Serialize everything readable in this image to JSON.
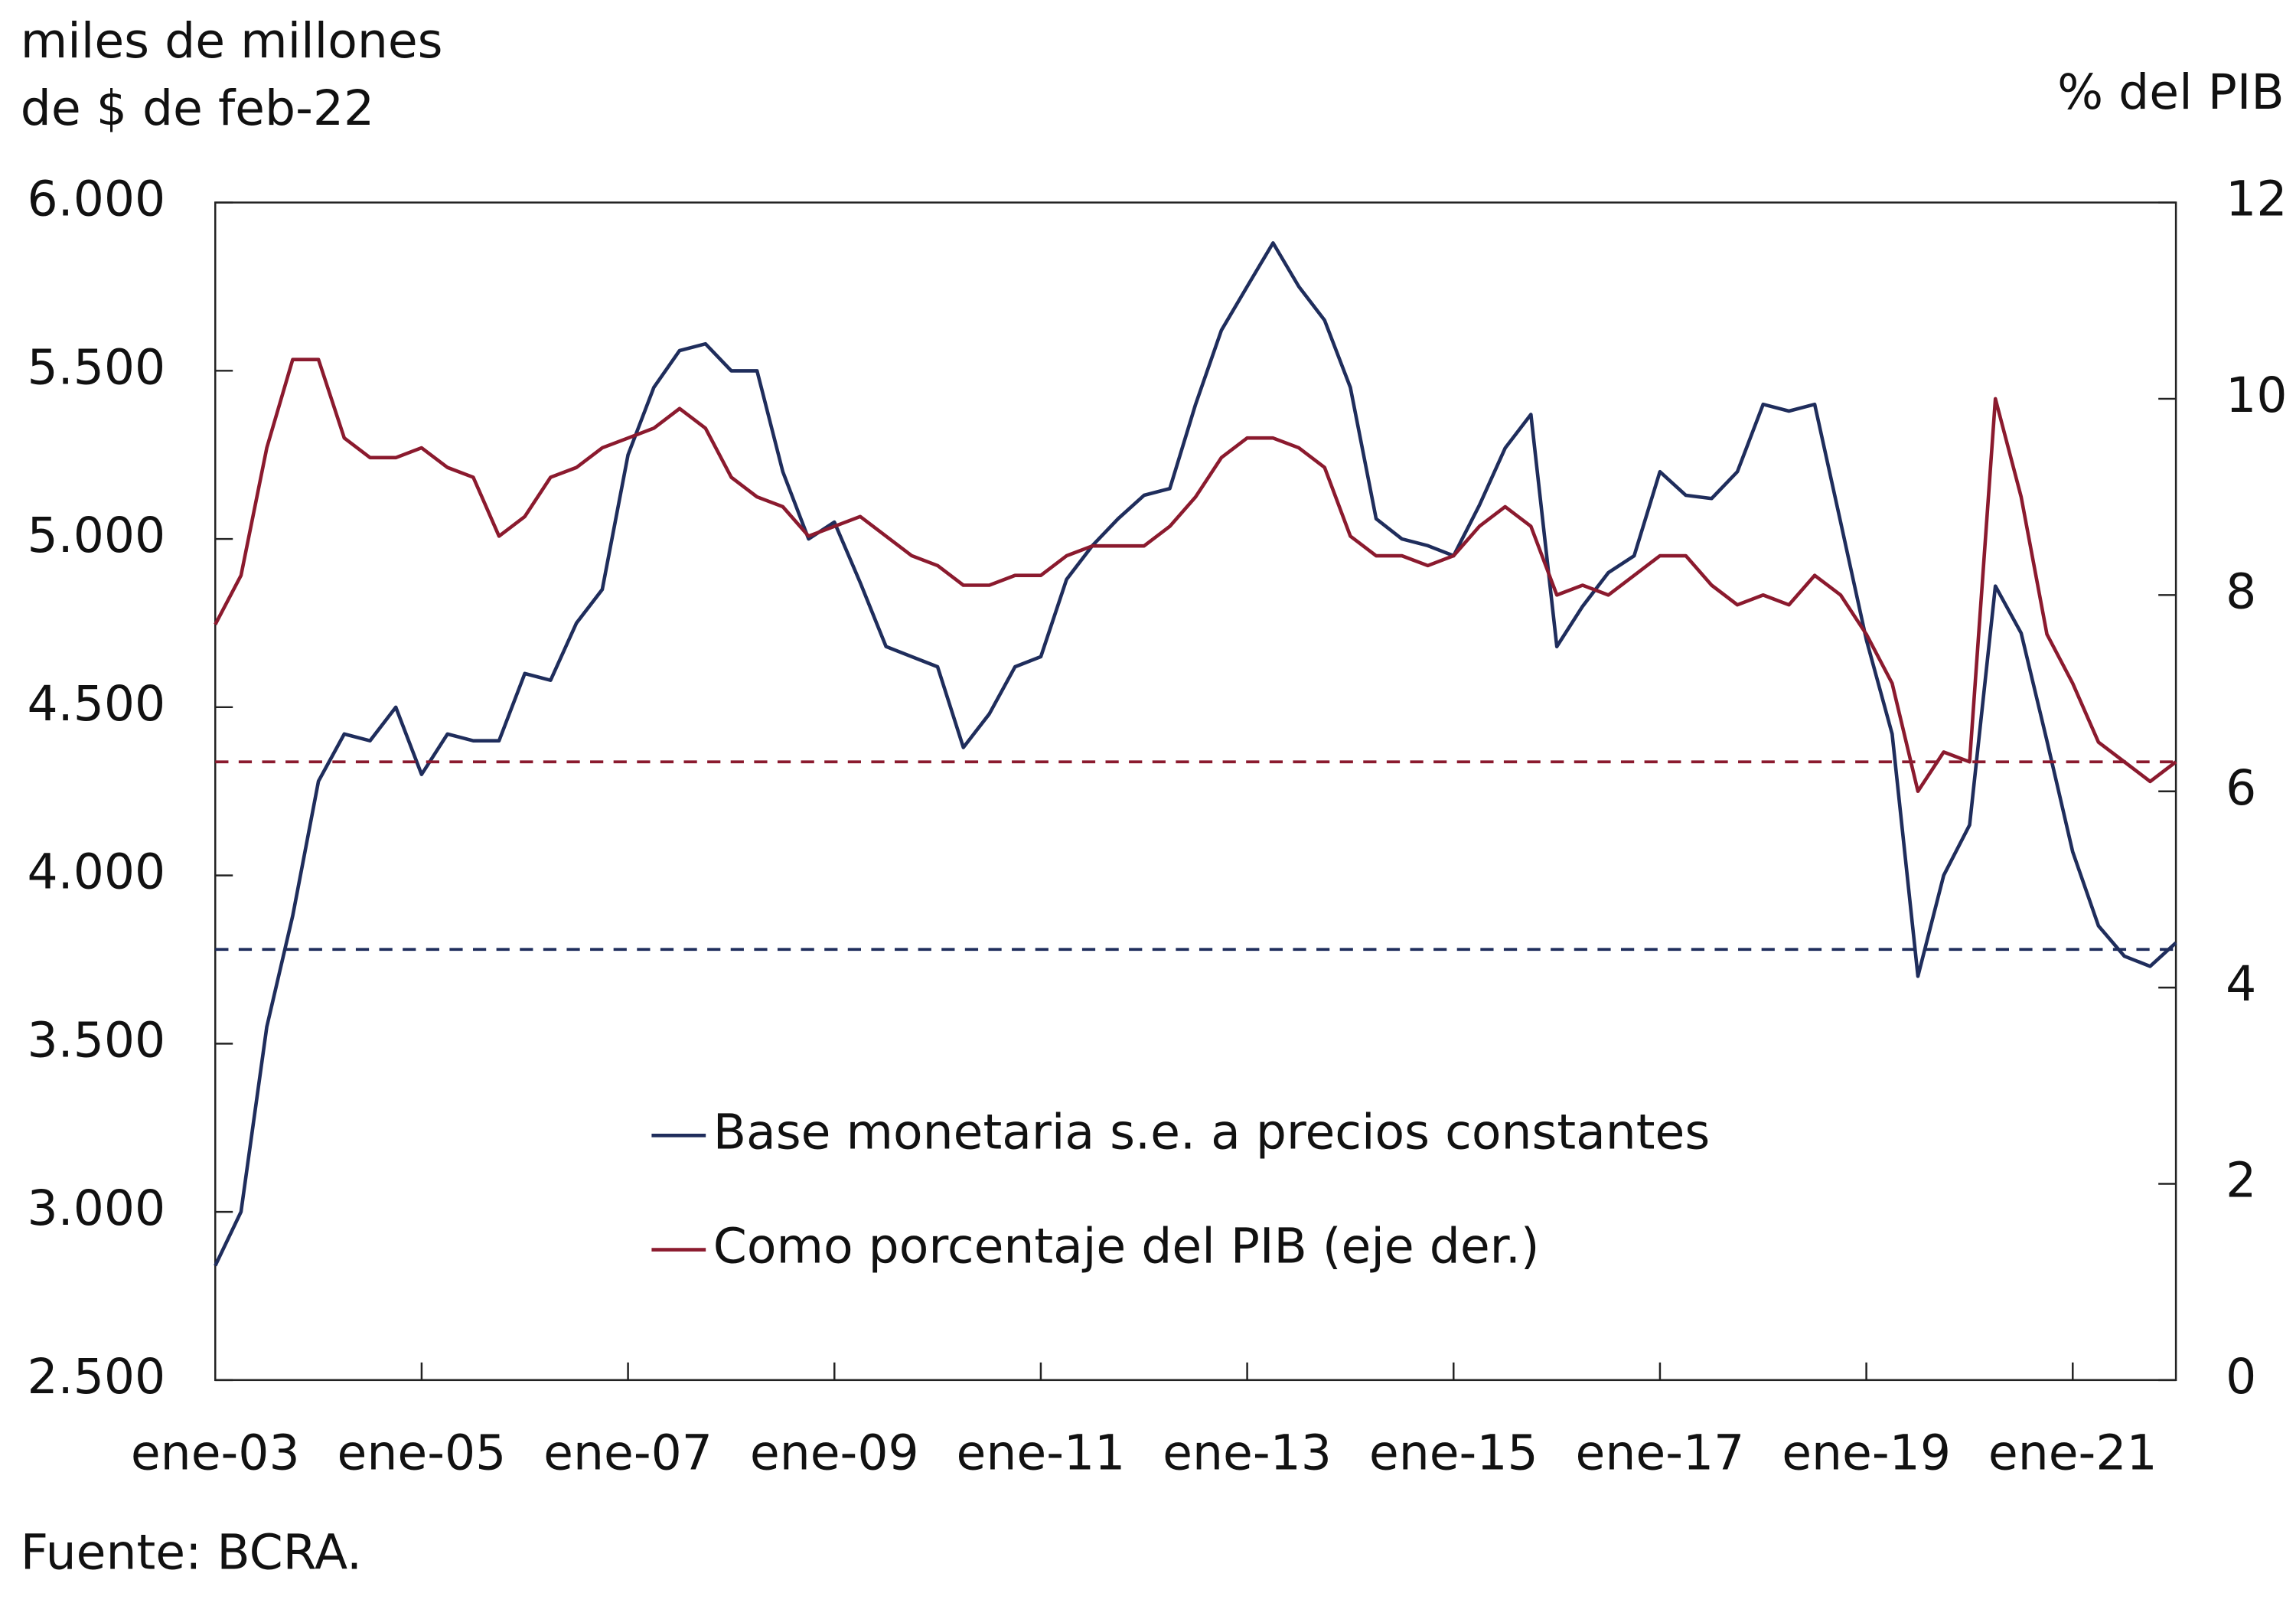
{
  "chart_data": {
    "type": "line",
    "y_label_lines": [
      "miles de millones",
      "de $ de feb-22"
    ],
    "y2_label": "% del PIB",
    "source": "Fuente: BCRA.",
    "categories": [
      "ene-03",
      null,
      null,
      null,
      null,
      null,
      null,
      null,
      "ene-05",
      null,
      null,
      null,
      null,
      null,
      null,
      null,
      "ene-07",
      null,
      null,
      null,
      null,
      null,
      null,
      null,
      "ene-09",
      null,
      null,
      null,
      null,
      null,
      null,
      null,
      "ene-11",
      null,
      null,
      null,
      null,
      null,
      null,
      null,
      "ene-13",
      null,
      null,
      null,
      null,
      null,
      null,
      null,
      "ene-15",
      null,
      null,
      null,
      null,
      null,
      null,
      null,
      "ene-17",
      null,
      null,
      null,
      null,
      null,
      null,
      null,
      "ene-19",
      null,
      null,
      null,
      null,
      null,
      null,
      null,
      "ene-21",
      null,
      null,
      null,
      null
    ],
    "series": [
      {
        "name": "Base monetaria s.e. a precios constantes",
        "color": "#1f2d5c",
        "axis": "y",
        "values": [
          2840,
          3000,
          3550,
          3880,
          4280,
          4420,
          4400,
          4500,
          4300,
          4420,
          4400,
          4400,
          4600,
          4580,
          4750,
          4850,
          5250,
          5450,
          5560,
          5580,
          5500,
          5500,
          5200,
          5000,
          5050,
          4870,
          4680,
          4650,
          4620,
          4380,
          4480,
          4620,
          4650,
          4880,
          4980,
          5060,
          5130,
          5150,
          5400,
          5620,
          5750,
          5880,
          5750,
          5650,
          5450,
          5060,
          5000,
          4980,
          4950,
          5100,
          5270,
          5370,
          4680,
          4800,
          4900,
          4950,
          5200,
          5130,
          5120,
          5200,
          5400,
          5380,
          5400,
          5050,
          4700,
          4420,
          3700,
          4000,
          4150,
          4860,
          4720,
          4400,
          4070,
          3850,
          3760,
          3730,
          3800
        ],
        "reference": 3780
      },
      {
        "name": "Como porcentaje del PIB (eje der.)",
        "color": "#8b1a2e",
        "axis": "y2",
        "values": [
          7.7,
          8.2,
          9.5,
          10.4,
          10.4,
          9.6,
          9.4,
          9.4,
          9.5,
          9.3,
          9.2,
          8.6,
          8.8,
          9.2,
          9.3,
          9.5,
          9.6,
          9.7,
          9.9,
          9.7,
          9.2,
          9.0,
          8.9,
          8.6,
          8.7,
          8.8,
          8.6,
          8.4,
          8.3,
          8.1,
          8.1,
          8.2,
          8.2,
          8.4,
          8.5,
          8.5,
          8.5,
          8.7,
          9.0,
          9.4,
          9.6,
          9.6,
          9.5,
          9.3,
          8.6,
          8.4,
          8.4,
          8.3,
          8.4,
          8.7,
          8.9,
          8.7,
          8.0,
          8.1,
          8.0,
          8.2,
          8.4,
          8.4,
          8.1,
          7.9,
          8.0,
          7.9,
          8.2,
          8.0,
          7.6,
          7.1,
          6.0,
          6.4,
          6.3,
          10.0,
          9.0,
          7.6,
          7.1,
          6.5,
          6.3,
          6.1,
          6.3
        ],
        "reference": 6.3
      }
    ],
    "ylim": [
      2500,
      6000
    ],
    "yticks": [
      {
        "value": 2500,
        "label": "2.500"
      },
      {
        "value": 3000,
        "label": "3.000"
      },
      {
        "value": 3500,
        "label": "3.500"
      },
      {
        "value": 4000,
        "label": "4.000"
      },
      {
        "value": 4500,
        "label": "4.500"
      },
      {
        "value": 5000,
        "label": "5.000"
      },
      {
        "value": 5500,
        "label": "5.500"
      },
      {
        "value": 6000,
        "label": "6.000"
      }
    ],
    "y2lim": [
      0,
      12
    ],
    "y2ticks": [
      0,
      2,
      4,
      6,
      8,
      10,
      12
    ]
  }
}
